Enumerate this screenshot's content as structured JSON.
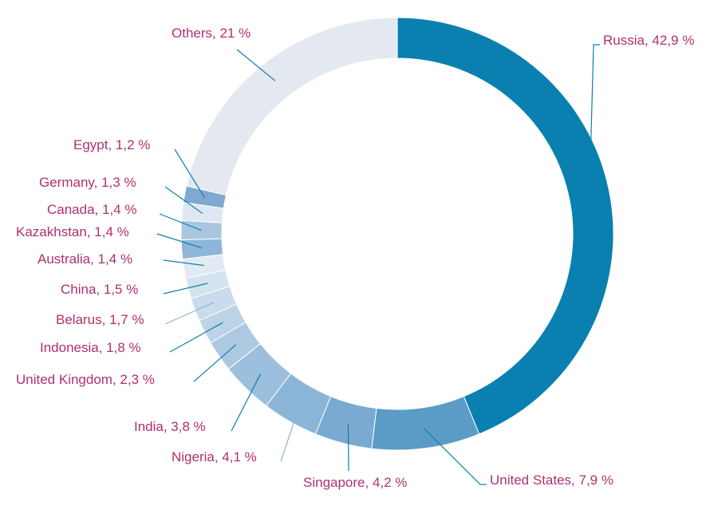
{
  "chart_data": {
    "type": "pie",
    "variant": "donut",
    "slices": [
      {
        "label": "Russia, 42,9 %",
        "name": "Russia",
        "value": 42.9,
        "color": "#0a80b0",
        "leader_color": "#0a80b0"
      },
      {
        "label": "United States, 7,9 %",
        "name": "United States",
        "value": 7.9,
        "color": "#5b9cc6",
        "leader_color": "#0a80b0"
      },
      {
        "label": "Singapore, 4,2 %",
        "name": "Singapore",
        "value": 4.2,
        "color": "#7aaad0",
        "leader_color": "#0a80b0"
      },
      {
        "label": "Nigeria, 4,1 %",
        "name": "Nigeria",
        "value": 4.1,
        "color": "#8bb5d6",
        "leader_color": "#8bb5d6"
      },
      {
        "label": "India, 3,8 %",
        "name": "India",
        "value": 3.8,
        "color": "#9bbfdc",
        "leader_color": "#0a80b0"
      },
      {
        "label": "United Kingdom, 2,3 %",
        "name": "United Kingdom",
        "value": 2.3,
        "color": "#adc9e2",
        "leader_color": "#0a80b0"
      },
      {
        "label": "Indonesia, 1,8 %",
        "name": "Indonesia",
        "value": 1.8,
        "color": "#bcd3e7",
        "leader_color": "#0a80b0"
      },
      {
        "label": "Belarus, 1,7 %",
        "name": "Belarus",
        "value": 1.7,
        "color": "#c9dbec",
        "leader_color": "#8bb5d6"
      },
      {
        "label": "China, 1,5 %",
        "name": "China",
        "value": 1.5,
        "color": "#d5e2ef",
        "leader_color": "#0a80b0"
      },
      {
        "label": "Australia, 1,4 %",
        "name": "Australia",
        "value": 1.4,
        "color": "#e2ebf4",
        "leader_color": "#0a80b0"
      },
      {
        "label": "Kazakhstan, 1,4 %",
        "name": "Kazakhstan",
        "value": 1.4,
        "color": "#8fb6d8",
        "leader_color": "#0a80b0"
      },
      {
        "label": "Canada, 1,4 %",
        "name": "Canada",
        "value": 1.4,
        "color": "#a9c6e1",
        "leader_color": "#0a80b0"
      },
      {
        "label": "Germany, 1,3 %",
        "name": "Germany",
        "value": 1.3,
        "color": "#dfe8f2",
        "leader_color": "#0a80b0"
      },
      {
        "label": "Egypt, 1,2 %",
        "name": "Egypt",
        "value": 1.2,
        "color": "#7fa9d0",
        "leader_color": "#0a80b0"
      },
      {
        "label": "Others, 21 %",
        "name": "Others",
        "value": 21,
        "color": "#e3e8f1",
        "leader_color": "#0a80b0"
      }
    ],
    "start": "top",
    "direction": "clockwise",
    "legend": "none",
    "labels": "outside with leader lines"
  }
}
